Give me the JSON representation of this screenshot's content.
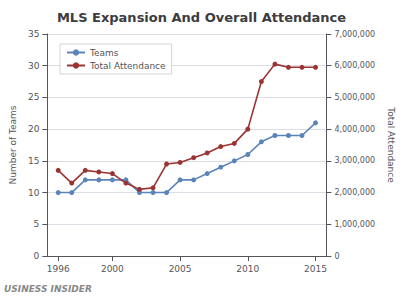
{
  "chart_data": {
    "type": "line",
    "title": "MLS Expansion And Overall Attendance",
    "x": [
      1996,
      1997,
      1998,
      1999,
      2000,
      2001,
      2002,
      2003,
      2004,
      2005,
      2006,
      2007,
      2008,
      2009,
      2010,
      2011,
      2012,
      2013,
      2014,
      2015
    ],
    "series": [
      {
        "name": "Teams",
        "color": "#5b84b8",
        "marker": "circle",
        "values": [
          10,
          10,
          12,
          12,
          12,
          12,
          10,
          10,
          10,
          12,
          12,
          13,
          14,
          15,
          16,
          18,
          19,
          19,
          19,
          21
        ]
      },
      {
        "name": "Total Attendance",
        "color": "#9b3333",
        "marker": "circle",
        "axis": "y2",
        "values": [
          2700000,
          2300000,
          2700000,
          2650000,
          2600000,
          2300000,
          2100000,
          2150000,
          2900000,
          2950000,
          3100000,
          3250000,
          3450000,
          3550000,
          4000000,
          5500000,
          6050000,
          5950000,
          5950000,
          5950000
        ]
      }
    ],
    "xlim": [
      1995.2,
      2015.8
    ],
    "xticks": [
      1996,
      2000,
      2005,
      2010,
      2015
    ],
    "ylim": [
      0,
      35
    ],
    "yticks": [
      0,
      5,
      10,
      15,
      20,
      25,
      30,
      35
    ],
    "y2lim": [
      0,
      7000000
    ],
    "y2ticks": [
      0,
      {
        "value": 1000000,
        "label": "1,000,000"
      },
      {
        "value": 2000000,
        "label": "2,000,000"
      },
      {
        "value": 3000000,
        "label": "3,000,000"
      },
      {
        "value": 4000000,
        "label": "4,000,000"
      },
      {
        "value": 5000000,
        "label": "5,000,000"
      },
      {
        "value": 6000000,
        "label": "6,000,000"
      },
      {
        "value": 7000000,
        "label": "7,000,000"
      }
    ],
    "ylabel": "Number of Teams",
    "y2label": "Total Attendance",
    "annotations": [
      "USINESS INSIDER"
    ],
    "grid": true,
    "legend": "upper left"
  }
}
